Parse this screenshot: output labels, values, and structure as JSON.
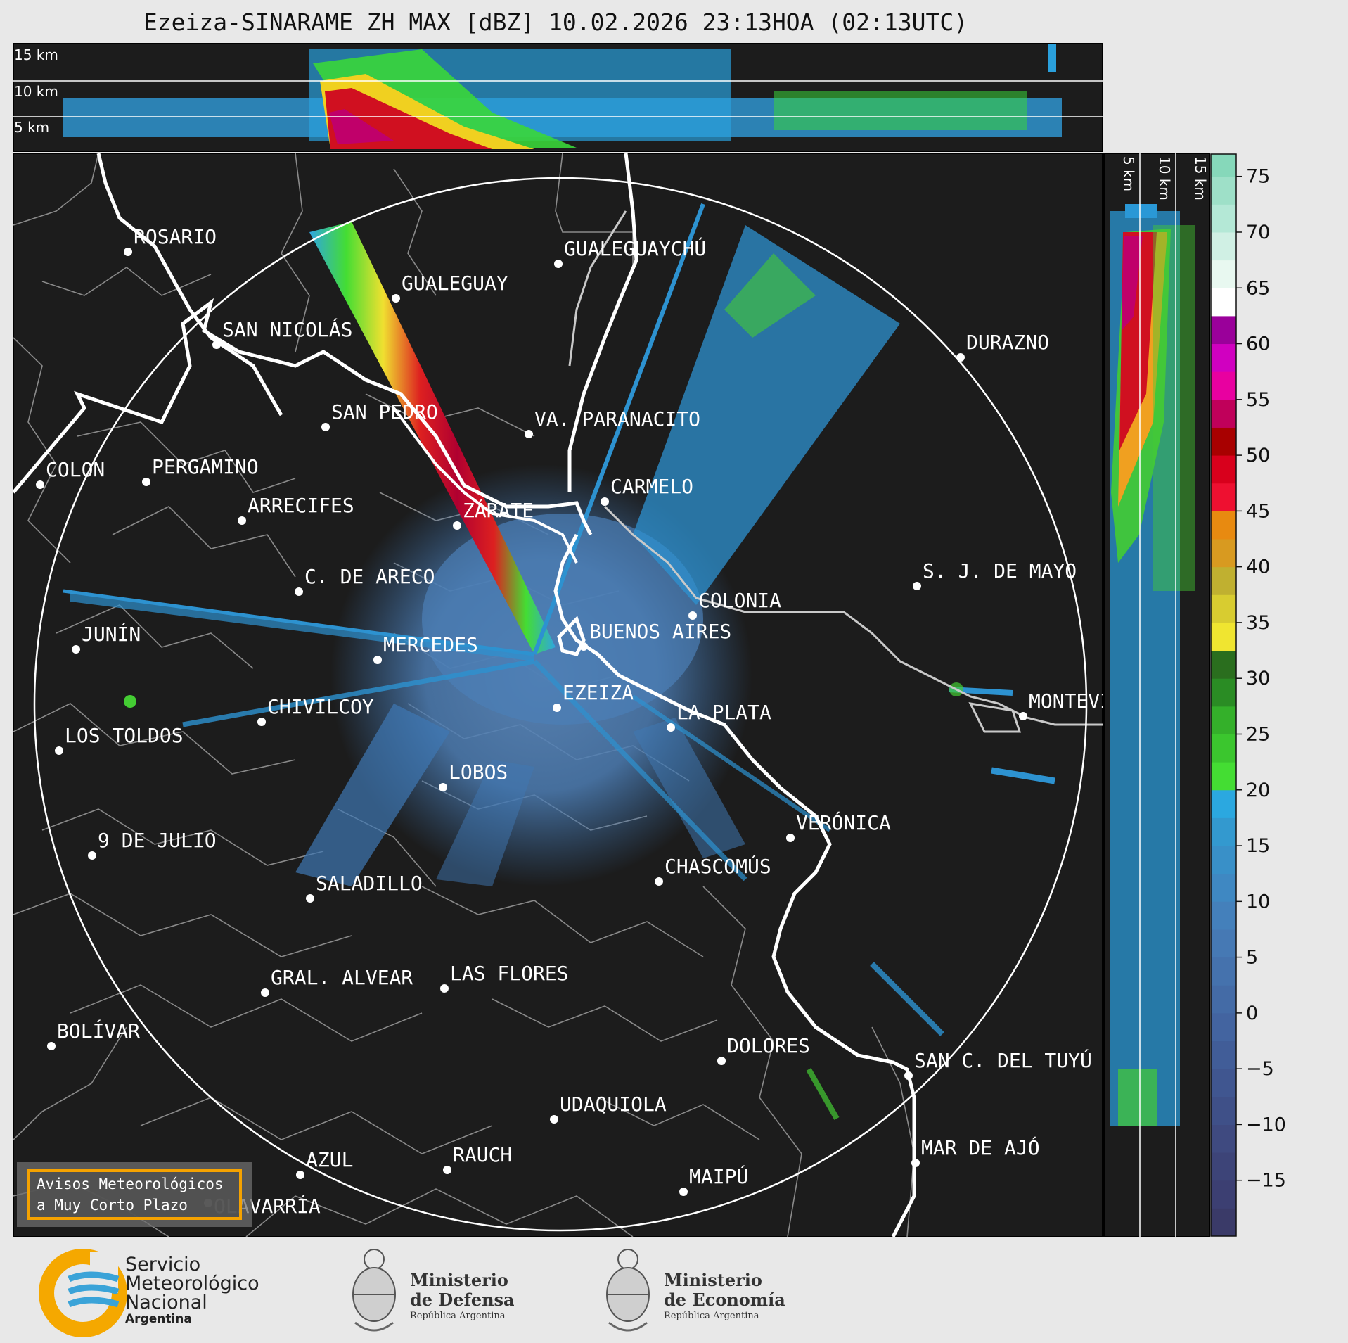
{
  "title": "Ezeiza-SINARAME ZH MAX [dBZ] 10.02.2026 23:13HOA (02:13UTC)",
  "top_panel_heights": [
    "15 km",
    "10 km",
    "5 km"
  ],
  "side_panel_heights": [
    "5 km",
    "10 km",
    "15 km"
  ],
  "colorbar": {
    "ticks": [
      "75",
      "70",
      "65",
      "60",
      "55",
      "50",
      "45",
      "40",
      "35",
      "30",
      "25",
      "20",
      "15",
      "10",
      "5",
      "0",
      "−5",
      "−10",
      "−15"
    ],
    "range": [
      -20,
      77
    ]
  },
  "cities": [
    {
      "name": "ROSARIO"
    },
    {
      "name": "GUALEGUAYCHÚ"
    },
    {
      "name": "GUALEGUAY"
    },
    {
      "name": "SAN NICOLÁS"
    },
    {
      "name": "DURAZNO"
    },
    {
      "name": "SAN PEDRO"
    },
    {
      "name": "VA. PARANACITO"
    },
    {
      "name": "COLON"
    },
    {
      "name": "PERGAMINO"
    },
    {
      "name": "CARMELO"
    },
    {
      "name": "ARRECIFES"
    },
    {
      "name": "ZÁRATE"
    },
    {
      "name": "S. J. DE MAYO"
    },
    {
      "name": "C. DE ARECO"
    },
    {
      "name": "COLONIA"
    },
    {
      "name": "JUNÍN"
    },
    {
      "name": "BUENOS AIRES"
    },
    {
      "name": "MERCEDES"
    },
    {
      "name": "MONTEVIDEO"
    },
    {
      "name": "EZEIZA"
    },
    {
      "name": "CHIVILCOY"
    },
    {
      "name": "LA PLATA"
    },
    {
      "name": "LOS TOLDOS"
    },
    {
      "name": "LOBOS"
    },
    {
      "name": "VERÓNICA"
    },
    {
      "name": "9 DE JULIO"
    },
    {
      "name": "CHASCOMÚS"
    },
    {
      "name": "SALADILLO"
    },
    {
      "name": "GRAL. ALVEAR"
    },
    {
      "name": "LAS FLORES"
    },
    {
      "name": "BOLÍVAR"
    },
    {
      "name": "DOLORES"
    },
    {
      "name": "SAN C. DEL TUYÚ"
    },
    {
      "name": "UDAQUIOLA"
    },
    {
      "name": "MAR DE AJÓ"
    },
    {
      "name": "AZUL"
    },
    {
      "name": "RAUCH"
    },
    {
      "name": "OLAVARRÍA"
    },
    {
      "name": "MAIPÚ"
    }
  ],
  "notice": {
    "line1": "Avisos Meteorológicos",
    "line2": "a Muy Corto Plazo"
  },
  "logos": {
    "smn": {
      "line1": "Servicio",
      "line2": "Meteorológico",
      "line3": "Nacional",
      "line4": "Argentina"
    },
    "defensa": {
      "line1": "Ministerio",
      "line2": "de Defensa",
      "line3": "República Argentina"
    },
    "economia": {
      "line1": "Ministerio",
      "line2": "de Economía",
      "line3": "República Argentina"
    }
  },
  "colors": {
    "panel_bg": "#1c1c1c",
    "range_ring": "#ffffff",
    "coast": "#ffffff",
    "borders": "#8a8a8a",
    "smn_orange": "#f5a800",
    "smn_blue": "#3aa3d8"
  }
}
